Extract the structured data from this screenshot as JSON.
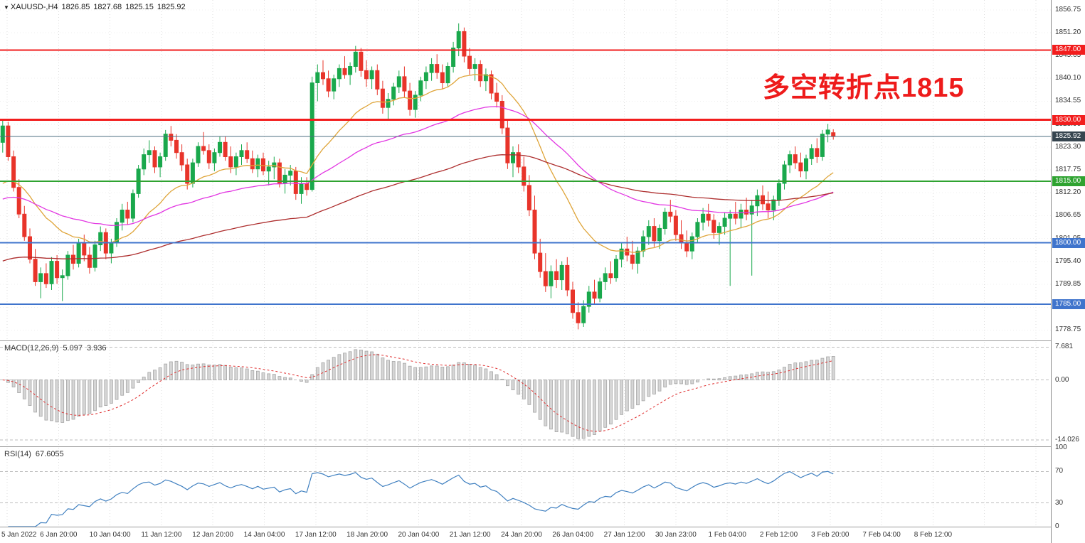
{
  "chart_header": {
    "symbol_timeframe": "XAUUSD-,H4",
    "open": "1826.85",
    "high": "1827.68",
    "low": "1825.15",
    "close": "1825.92"
  },
  "icons": {
    "dropdown": "▼"
  },
  "annotation": {
    "text": "多空转折点1815",
    "color": "#ee1b1b"
  },
  "price_axis": {
    "values": [
      1856.75,
      1851.2,
      1845.65,
      1840.1,
      1834.55,
      1828.9,
      1823.3,
      1817.75,
      1812.2,
      1806.65,
      1801.05,
      1795.4,
      1789.85,
      1784.3,
      1778.75
    ]
  },
  "macd_panel": {
    "label": "MACD(12,26,9)",
    "value_main": "5.097",
    "value_signal": "3.936",
    "axis_labels": [
      "7.681",
      "0.00",
      "-14.026"
    ],
    "axis_values": [
      7.681,
      0,
      -14.026
    ],
    "ylim": [
      8.9,
      -15.5
    ],
    "histogram_color": "#d6d6d6",
    "signal_color": "#e03030"
  },
  "rsi_panel": {
    "label": "RSI(14)",
    "value": "67.6055",
    "period": 14,
    "axis_labels": [
      100,
      70,
      30,
      0
    ],
    "guide_levels": [
      70,
      30
    ],
    "line_color": "#4080c0"
  },
  "time_axis": {
    "labels": [
      "5 Jan 2022",
      "6 Jan 20:00",
      "10 Jan 04:00",
      "11 Jan 12:00",
      "12 Jan 20:00",
      "14 Jan 04:00",
      "17 Jan 12:00",
      "18 Jan 20:00",
      "20 Jan 04:00",
      "21 Jan 12:00",
      "24 Jan 20:00",
      "26 Jan 04:00",
      "27 Jan 12:00",
      "30 Jan 23:00",
      "1 Feb 04:00",
      "2 Feb 12:00",
      "3 Feb 20:00",
      "7 Feb 04:00",
      "8 Feb 12:00"
    ]
  },
  "chart_data": {
    "type": "candlestick",
    "symbol": "XAUUSD",
    "timeframe": "H4",
    "title": "XAUUSD-,H4 1826.85 1827.68 1825.15 1825.92",
    "ylim": [
      1776.2,
      1859.2
    ],
    "up_color": "#19a84c",
    "down_color": "#e8342a",
    "grid": true,
    "candles": [
      [
        1824.5,
        1830,
        1822,
        1828.5
      ],
      [
        1828.5,
        1829.5,
        1820,
        1821
      ],
      [
        1821,
        1822.5,
        1812.5,
        1813.5
      ],
      [
        1813.5,
        1815.5,
        1806,
        1807
      ],
      [
        1807,
        1809,
        1800.5,
        1801.5
      ],
      [
        1801.5,
        1803.5,
        1795,
        1796
      ],
      [
        1796,
        1798.5,
        1789.5,
        1790.5
      ],
      [
        1790.5,
        1794,
        1786.5,
        1792.5
      ],
      [
        1792.5,
        1795,
        1789,
        1790
      ],
      [
        1790,
        1796.5,
        1788.5,
        1795.5
      ],
      [
        1795.5,
        1797,
        1790,
        1791.5
      ],
      [
        1791.5,
        1793.5,
        1785.8,
        1792
      ],
      [
        1792,
        1798,
        1791,
        1797
      ],
      [
        1797,
        1799.5,
        1793.5,
        1795
      ],
      [
        1795,
        1801,
        1794,
        1800
      ],
      [
        1800,
        1802,
        1795.5,
        1797
      ],
      [
        1797,
        1799,
        1792.5,
        1794
      ],
      [
        1794,
        1800.5,
        1793,
        1799.5
      ],
      [
        1799.5,
        1804,
        1798,
        1802.5
      ],
      [
        1802.5,
        1803.5,
        1796,
        1797.5
      ],
      [
        1797.5,
        1801,
        1795,
        1800
      ],
      [
        1800,
        1806,
        1799,
        1805
      ],
      [
        1805,
        1809.5,
        1803,
        1808
      ],
      [
        1808,
        1810,
        1804.5,
        1806
      ],
      [
        1806,
        1813,
        1805,
        1812
      ],
      [
        1812,
        1819,
        1811,
        1818
      ],
      [
        1818,
        1823,
        1816.5,
        1821.5
      ],
      [
        1821.5,
        1825,
        1819.5,
        1822.5
      ],
      [
        1822.5,
        1823.5,
        1817,
        1818.5
      ],
      [
        1818.5,
        1822,
        1816,
        1821
      ],
      [
        1821,
        1827.5,
        1820,
        1826.5
      ],
      [
        1826.5,
        1828.5,
        1823.5,
        1825
      ],
      [
        1825,
        1826.5,
        1820.5,
        1822
      ],
      [
        1822,
        1824,
        1817.5,
        1819
      ],
      [
        1819,
        1820.5,
        1813,
        1814.5
      ],
      [
        1814.5,
        1820.5,
        1813.5,
        1819.5
      ],
      [
        1819.5,
        1824.5,
        1818.5,
        1823.5
      ],
      [
        1823.5,
        1827,
        1821.5,
        1822.5
      ],
      [
        1822.5,
        1824,
        1818,
        1819.5
      ],
      [
        1819.5,
        1823,
        1817.5,
        1822
      ],
      [
        1822,
        1826,
        1821,
        1824.5
      ],
      [
        1824.5,
        1826,
        1820,
        1821
      ],
      [
        1821,
        1823.5,
        1817,
        1818.5
      ],
      [
        1818.5,
        1822,
        1816.5,
        1821
      ],
      [
        1821,
        1824,
        1819,
        1822.5
      ],
      [
        1822.5,
        1824.5,
        1819.5,
        1820.5
      ],
      [
        1820.5,
        1822.5,
        1817,
        1818
      ],
      [
        1818,
        1821.5,
        1816,
        1820.5
      ],
      [
        1820.5,
        1822,
        1816.5,
        1817.5
      ],
      [
        1817.5,
        1820,
        1814,
        1818.5
      ],
      [
        1818.5,
        1821,
        1815.5,
        1819.5
      ],
      [
        1819.5,
        1820.5,
        1813.5,
        1814.5
      ],
      [
        1814.5,
        1818,
        1812,
        1816.5
      ],
      [
        1816.5,
        1819,
        1814,
        1817.5
      ],
      [
        1817.5,
        1818.5,
        1810.5,
        1812
      ],
      [
        1812,
        1816,
        1809.5,
        1814.5
      ],
      [
        1814.5,
        1816,
        1811.5,
        1813
      ],
      [
        1813,
        1840.5,
        1812.5,
        1839
      ],
      [
        1839,
        1843.5,
        1834.5,
        1841.5
      ],
      [
        1841.5,
        1844.5,
        1838.5,
        1840
      ],
      [
        1840,
        1842,
        1835.5,
        1837
      ],
      [
        1837,
        1841,
        1835,
        1840
      ],
      [
        1840,
        1843.5,
        1838,
        1842.5
      ],
      [
        1842.5,
        1845.5,
        1840,
        1841
      ],
      [
        1841,
        1844,
        1838.5,
        1843
      ],
      [
        1843,
        1848,
        1841.5,
        1846.5
      ],
      [
        1846.5,
        1847.5,
        1840.5,
        1842
      ],
      [
        1842,
        1844.5,
        1838,
        1840
      ],
      [
        1840,
        1843,
        1837.5,
        1842
      ],
      [
        1842,
        1843.5,
        1836,
        1837.5
      ],
      [
        1837.5,
        1839.5,
        1831.5,
        1833
      ],
      [
        1833,
        1836.5,
        1830,
        1835
      ],
      [
        1835,
        1839,
        1833.5,
        1838
      ],
      [
        1838,
        1842,
        1836.5,
        1840.5
      ],
      [
        1840.5,
        1843,
        1835.5,
        1837
      ],
      [
        1837,
        1839,
        1831,
        1832.5
      ],
      [
        1832.5,
        1837,
        1830.5,
        1836
      ],
      [
        1836,
        1840.5,
        1834.5,
        1839.5
      ],
      [
        1839.5,
        1843,
        1837.5,
        1841.5
      ],
      [
        1841.5,
        1845,
        1839.5,
        1843.5
      ],
      [
        1843.5,
        1846,
        1840,
        1841.5
      ],
      [
        1841.5,
        1843.5,
        1837.5,
        1839
      ],
      [
        1839,
        1844,
        1838,
        1843
      ],
      [
        1843,
        1849,
        1841.5,
        1847.5
      ],
      [
        1847.5,
        1853.5,
        1845.5,
        1851.5
      ],
      [
        1851.5,
        1852.5,
        1844,
        1845.5
      ],
      [
        1845.5,
        1847.5,
        1841,
        1842.5
      ],
      [
        1842.5,
        1845,
        1839.5,
        1843.5
      ],
      [
        1843.5,
        1844.5,
        1838,
        1839.5
      ],
      [
        1839.5,
        1842.5,
        1837,
        1841
      ],
      [
        1841,
        1842,
        1835,
        1836.5
      ],
      [
        1836.5,
        1839,
        1833,
        1834.5
      ],
      [
        1834.5,
        1836,
        1826.5,
        1828
      ],
      [
        1828,
        1830,
        1818,
        1819.5
      ],
      [
        1819.5,
        1823.5,
        1816,
        1822
      ],
      [
        1822,
        1824,
        1817,
        1818.5
      ],
      [
        1818.5,
        1821,
        1812.5,
        1814
      ],
      [
        1814,
        1816.5,
        1806.5,
        1808
      ],
      [
        1808,
        1811.5,
        1796,
        1797.5
      ],
      [
        1797.5,
        1801,
        1791.5,
        1793
      ],
      [
        1793,
        1797.5,
        1788,
        1789.5
      ],
      [
        1789.5,
        1794.5,
        1786.5,
        1793
      ],
      [
        1793,
        1796,
        1789,
        1791
      ],
      [
        1791,
        1795.5,
        1788.5,
        1794.5
      ],
      [
        1794.5,
        1796.5,
        1787,
        1788.5
      ],
      [
        1788.5,
        1790.5,
        1781.5,
        1783
      ],
      [
        1783,
        1785.5,
        1778.9,
        1780.5
      ],
      [
        1780.5,
        1786,
        1779.5,
        1784.5
      ],
      [
        1784.5,
        1789.5,
        1783,
        1788
      ],
      [
        1788,
        1791,
        1785,
        1786.5
      ],
      [
        1786.5,
        1791.5,
        1785.5,
        1790.5
      ],
      [
        1790.5,
        1794,
        1788.5,
        1792.5
      ],
      [
        1792.5,
        1795.5,
        1790,
        1791.5
      ],
      [
        1791.5,
        1797,
        1790.5,
        1796
      ],
      [
        1796,
        1800,
        1794,
        1798.5
      ],
      [
        1798.5,
        1801.5,
        1795.5,
        1797
      ],
      [
        1797,
        1800.5,
        1793.5,
        1795
      ],
      [
        1795,
        1799,
        1792.5,
        1798
      ],
      [
        1798,
        1803,
        1796.5,
        1801.5
      ],
      [
        1801.5,
        1805.5,
        1799.5,
        1804
      ],
      [
        1804,
        1806,
        1799,
        1800.5
      ],
      [
        1800.5,
        1804.5,
        1798.5,
        1803.5
      ],
      [
        1803.5,
        1808.5,
        1802,
        1807.5
      ],
      [
        1807.5,
        1810.5,
        1805,
        1806.5
      ],
      [
        1806.5,
        1808,
        1800.5,
        1802
      ],
      [
        1802,
        1805.5,
        1798.5,
        1800
      ],
      [
        1800,
        1803,
        1796.5,
        1798
      ],
      [
        1798,
        1802.5,
        1796,
        1801.5
      ],
      [
        1801.5,
        1806,
        1800,
        1805
      ],
      [
        1805,
        1808.5,
        1803,
        1807
      ],
      [
        1807,
        1809.5,
        1804,
        1805.5
      ],
      [
        1805.5,
        1807,
        1801,
        1802.5
      ],
      [
        1802.5,
        1805,
        1799.5,
        1804
      ],
      [
        1804,
        1807.5,
        1802,
        1806
      ],
      [
        1806,
        1808,
        1789.5,
        1807
      ],
      [
        1807,
        1810,
        1804.5,
        1806
      ],
      [
        1806,
        1809.5,
        1803.5,
        1808
      ],
      [
        1808,
        1811,
        1805.5,
        1807
      ],
      [
        1807,
        1810.5,
        1792,
        1809
      ],
      [
        1809,
        1813,
        1806.5,
        1811.5
      ],
      [
        1811.5,
        1814,
        1808,
        1809.5
      ],
      [
        1809.5,
        1812.5,
        1806,
        1808
      ],
      [
        1808,
        1811.5,
        1805.5,
        1810.5
      ],
      [
        1810.5,
        1815.5,
        1809,
        1814.5
      ],
      [
        1814.5,
        1820,
        1813,
        1819
      ],
      [
        1819,
        1822.5,
        1817,
        1821.5
      ],
      [
        1821.5,
        1823.5,
        1818,
        1819.5
      ],
      [
        1819.5,
        1822,
        1816,
        1817.5
      ],
      [
        1817.5,
        1821.5,
        1815.5,
        1820.5
      ],
      [
        1820.5,
        1824,
        1819,
        1823
      ],
      [
        1823,
        1825.5,
        1819.5,
        1821
      ],
      [
        1821,
        1827.5,
        1820,
        1826.5
      ],
      [
        1826.5,
        1829,
        1824.5,
        1827.5
      ],
      [
        1826.85,
        1827.68,
        1825.15,
        1825.92
      ]
    ],
    "moving_averages": [
      {
        "name": "ma-fast",
        "period": 20,
        "seed": 1813,
        "color": "#dfa53a"
      },
      {
        "name": "ma-mid",
        "period": 55,
        "seed": 1810,
        "color": "#e236e2"
      },
      {
        "name": "ma-slow",
        "period": 120,
        "seed": 1795,
        "color": "#ae2f2f"
      }
    ],
    "horizontal_levels": [
      {
        "price": 1847.0,
        "label": "1847.00",
        "color": "#f21d1d",
        "width": 2
      },
      {
        "price": 1830.0,
        "label": "1830.00",
        "color": "#f21d1d",
        "width": 3
      },
      {
        "price": 1815.0,
        "label": "1815.00",
        "color": "#2fa331",
        "width": 2
      },
      {
        "price": 1800.0,
        "label": "1800.00",
        "color": "#3f74cc",
        "width": 2
      },
      {
        "price": 1785.0,
        "label": "1785.00",
        "color": "#3f74cc",
        "width": 2
      }
    ],
    "bid_line": {
      "price": 1825.92,
      "label": "1825.92",
      "line_color": "#4d6f80",
      "badge_color": "#36454f"
    },
    "indicators": [
      {
        "name": "MACD",
        "params": [
          12,
          26,
          9
        ],
        "current_main": 5.097,
        "current_signal": 3.936
      },
      {
        "name": "RSI",
        "params": [
          14
        ],
        "current": 67.6055
      }
    ]
  }
}
